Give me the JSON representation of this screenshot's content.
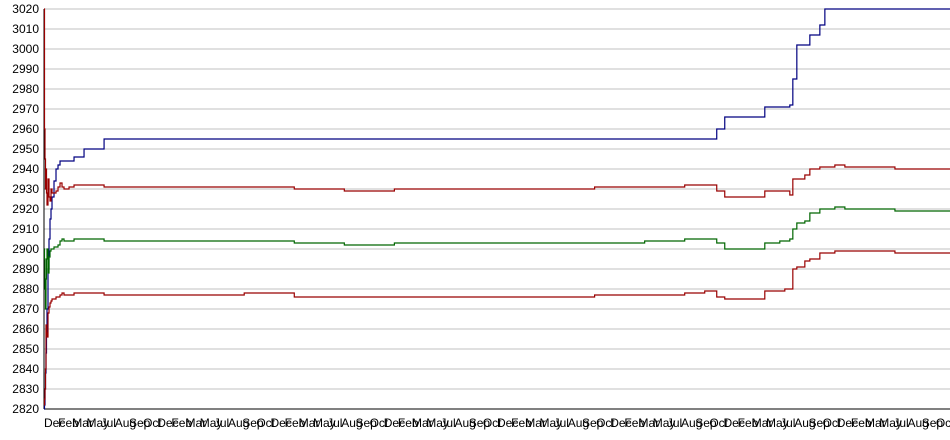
{
  "chart_data": {
    "type": "line",
    "title": "",
    "xlabel": "",
    "ylabel": "",
    "ylim": [
      2820,
      3020
    ],
    "yticks": [
      2820,
      2830,
      2840,
      2850,
      2860,
      2870,
      2880,
      2890,
      2900,
      2910,
      2920,
      2930,
      2940,
      2950,
      2960,
      2970,
      2980,
      2990,
      3000,
      3010,
      3020
    ],
    "grid": true,
    "legend": "none",
    "x_tick_labels": [
      "Dec",
      "Feb",
      "Mar",
      "May",
      "Jul",
      "Aug",
      "Sep",
      "Oct",
      "Dec",
      "Feb",
      "Mar",
      "May",
      "Jul",
      "Aug",
      "Sep",
      "Oct",
      "Dec",
      "Feb",
      "Mar",
      "May",
      "Jul",
      "Aug",
      "Sep",
      "Oct",
      "Dec",
      "Feb",
      "Mar",
      "May",
      "Jul",
      "Aug",
      "Sep",
      "Oct",
      "Dec",
      "Feb",
      "Mar",
      "May",
      "Jul",
      "Aug",
      "Sep",
      "Oct",
      "Dec",
      "Feb",
      "Mar",
      "May",
      "Jul",
      "Aug",
      "Sep",
      "Oct",
      "Dec",
      "Feb",
      "Mar",
      "May",
      "Jul",
      "Aug",
      "Sep",
      "Oct",
      "Dec",
      "Feb",
      "Mar",
      "May",
      "Jul",
      "Aug",
      "Sep",
      "Oct"
    ],
    "x": [
      0,
      0.5,
      1,
      1.5,
      2,
      2.5,
      3,
      4,
      5,
      6,
      7,
      8,
      10,
      12,
      14,
      16,
      18,
      20,
      25,
      30,
      40,
      60,
      80,
      100,
      150,
      200,
      250,
      300,
      350,
      400,
      450,
      500,
      550,
      600,
      640,
      660,
      668,
      672,
      680,
      700,
      720,
      735,
      740,
      745,
      748,
      752,
      760,
      765,
      775,
      780,
      790,
      800,
      820,
      850,
      880,
      905
    ],
    "series": [
      {
        "color": "#000080",
        "values": [
          2820,
          2822,
          2830,
          2838,
          2848,
          2858,
          2870,
          2890,
          2905,
          2915,
          2920,
          2926,
          2934,
          2940,
          2942,
          2944,
          2944,
          2944,
          2944,
          2946,
          2950,
          2955,
          2955,
          2955,
          2955,
          2955,
          2955,
          2955,
          2955,
          2955,
          2955,
          2955,
          2955,
          2955,
          2955,
          2955,
          2955,
          2960,
          2966,
          2966,
          2971,
          2971,
          2971,
          2972,
          2985,
          3002,
          3002,
          3007,
          3012,
          3020,
          3020,
          3020,
          3020,
          3020,
          3020,
          3020
        ]
      },
      {
        "color": "#990000",
        "values": [
          3020,
          2960,
          2945,
          2930,
          2940,
          2928,
          2922,
          2935,
          2926,
          2924,
          2930,
          2928,
          2928,
          2929,
          2931,
          2933,
          2931,
          2930,
          2931,
          2932,
          2932,
          2931,
          2931,
          2931,
          2931,
          2931,
          2930,
          2929,
          2930,
          2930,
          2930,
          2930,
          2931,
          2931,
          2932,
          2932,
          2932,
          2929,
          2926,
          2926,
          2929,
          2929,
          2929,
          2927,
          2935,
          2935,
          2937,
          2940,
          2941,
          2941,
          2942,
          2941,
          2941,
          2940,
          2940,
          2940
        ]
      },
      {
        "color": "#006600",
        "values": [
          2900,
          2895,
          2880,
          2870,
          2885,
          2895,
          2900,
          2888,
          2896,
          2899,
          2900,
          2900,
          2901,
          2901,
          2902,
          2904,
          2905,
          2904,
          2904,
          2905,
          2905,
          2904,
          2904,
          2904,
          2904,
          2904,
          2903,
          2902,
          2903,
          2903,
          2903,
          2903,
          2903,
          2904,
          2905,
          2905,
          2905,
          2903,
          2900,
          2900,
          2903,
          2904,
          2904,
          2905,
          2910,
          2913,
          2914,
          2918,
          2920,
          2920,
          2921,
          2920,
          2920,
          2919,
          2919,
          2919
        ]
      },
      {
        "color": "#990000",
        "values": [
          2822,
          2825,
          2830,
          2840,
          2862,
          2858,
          2856,
          2868,
          2871,
          2873,
          2874,
          2875,
          2875,
          2876,
          2876,
          2877,
          2878,
          2877,
          2877,
          2878,
          2878,
          2877,
          2877,
          2877,
          2877,
          2878,
          2876,
          2876,
          2876,
          2876,
          2876,
          2876,
          2877,
          2877,
          2878,
          2879,
          2879,
          2876,
          2875,
          2875,
          2879,
          2879,
          2880,
          2880,
          2890,
          2891,
          2894,
          2895,
          2898,
          2898,
          2899,
          2899,
          2899,
          2898,
          2898,
          2898
        ]
      }
    ]
  }
}
